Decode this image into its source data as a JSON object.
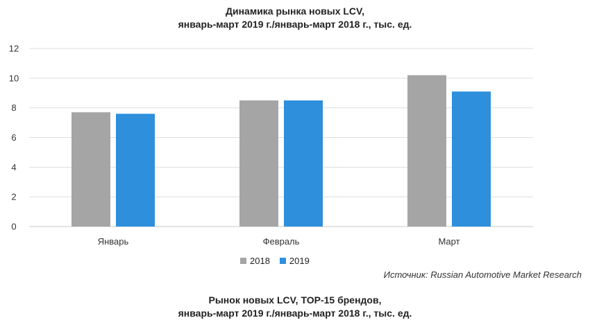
{
  "chart_data": {
    "type": "bar",
    "title_lines": [
      "Динамика рынка новых LCV,",
      "январь-март 2019 г./январь-март 2018 г., тыс. ед."
    ],
    "categories": [
      "Январь",
      "Февраль",
      "Март"
    ],
    "series": [
      {
        "name": "2018",
        "values": [
          7.7,
          8.5,
          10.2
        ],
        "color": "#a5a5a5"
      },
      {
        "name": "2019",
        "values": [
          7.6,
          8.5,
          9.1
        ],
        "color": "#2e8fdc"
      }
    ],
    "ylim": [
      0,
      12
    ],
    "yticks": [
      0,
      2,
      4,
      6,
      8,
      10,
      12
    ],
    "grid": true,
    "legend": "bottom"
  },
  "source": "Источник: Russian Automotive Market Research",
  "next_title_lines": [
    "Рынок новых LCV, TOP-15 брендов,",
    "январь-март 2019 г./январь-март 2018 г., тыс. ед."
  ]
}
